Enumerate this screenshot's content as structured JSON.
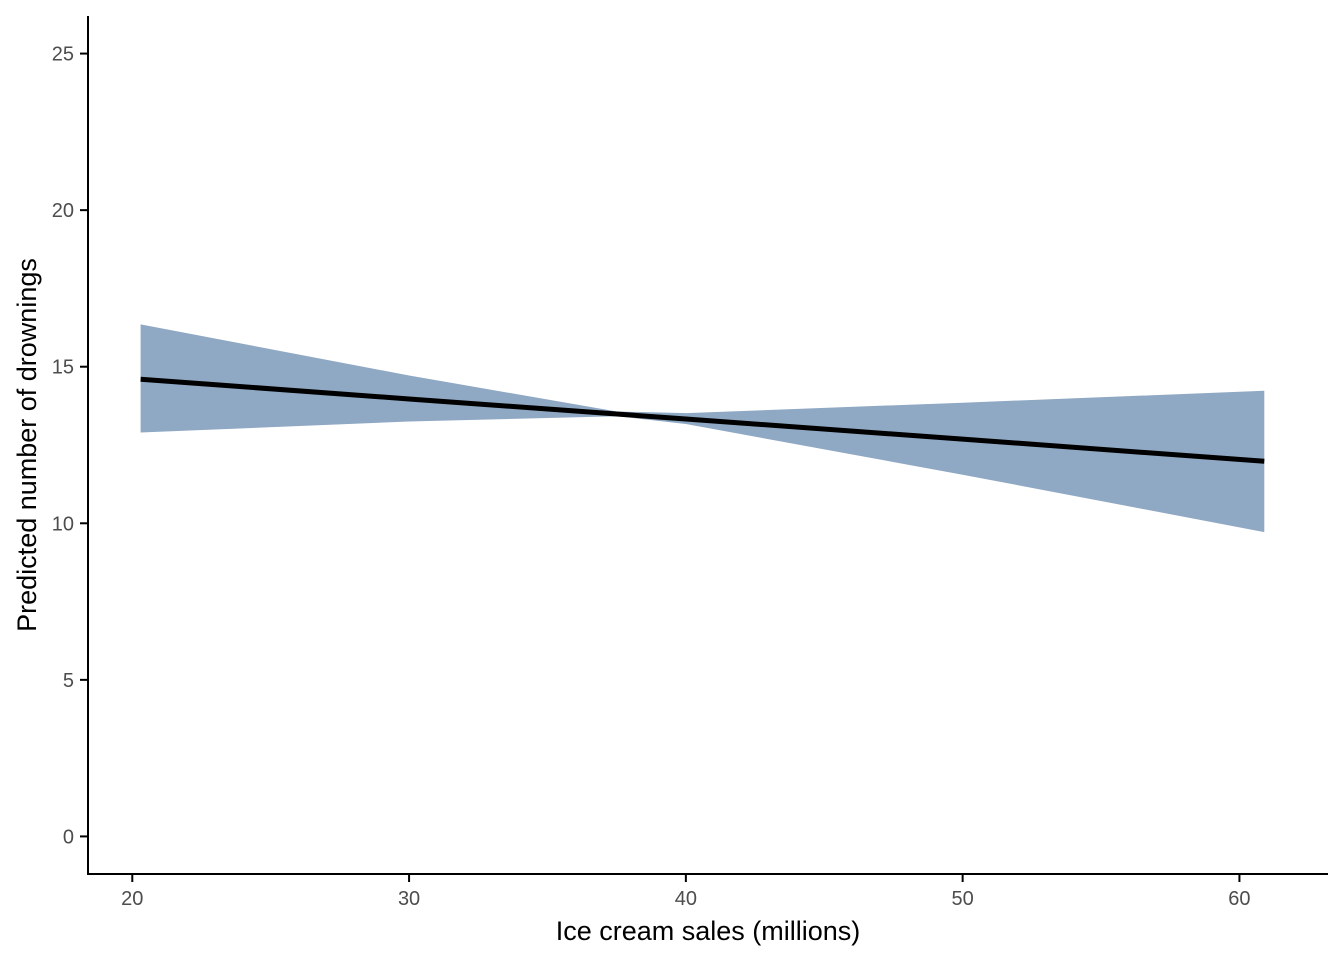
{
  "chart_data": {
    "type": "line",
    "title": "",
    "xlabel": "Ice cream sales (millions)",
    "ylabel": "Predicted number of drownings",
    "xlim": [
      18.4,
      63.2
    ],
    "ylim": [
      -1.2,
      26.2
    ],
    "x_ticks": [
      20,
      30,
      40,
      50,
      60
    ],
    "y_ticks": [
      0,
      5,
      10,
      15,
      20,
      25
    ],
    "grid": false,
    "legend": "none",
    "series": [
      {
        "x": [
          20.3,
          30,
          37.5,
          40,
          50,
          60.9
        ],
        "y": [
          14.6,
          13.97,
          13.49,
          13.33,
          12.69,
          11.98
        ]
      }
    ],
    "confidence_band": {
      "x": [
        20.3,
        30,
        37.5,
        40,
        50,
        60.9
      ],
      "lower": [
        12.9,
        13.25,
        13.42,
        13.17,
        11.55,
        9.72
      ],
      "upper": [
        16.35,
        14.72,
        13.57,
        13.52,
        13.85,
        14.23
      ]
    },
    "colors": {
      "line": "#000000",
      "band": "#8fa8c3",
      "axis": "#000000",
      "tick_label": "#4d4d4d"
    }
  }
}
